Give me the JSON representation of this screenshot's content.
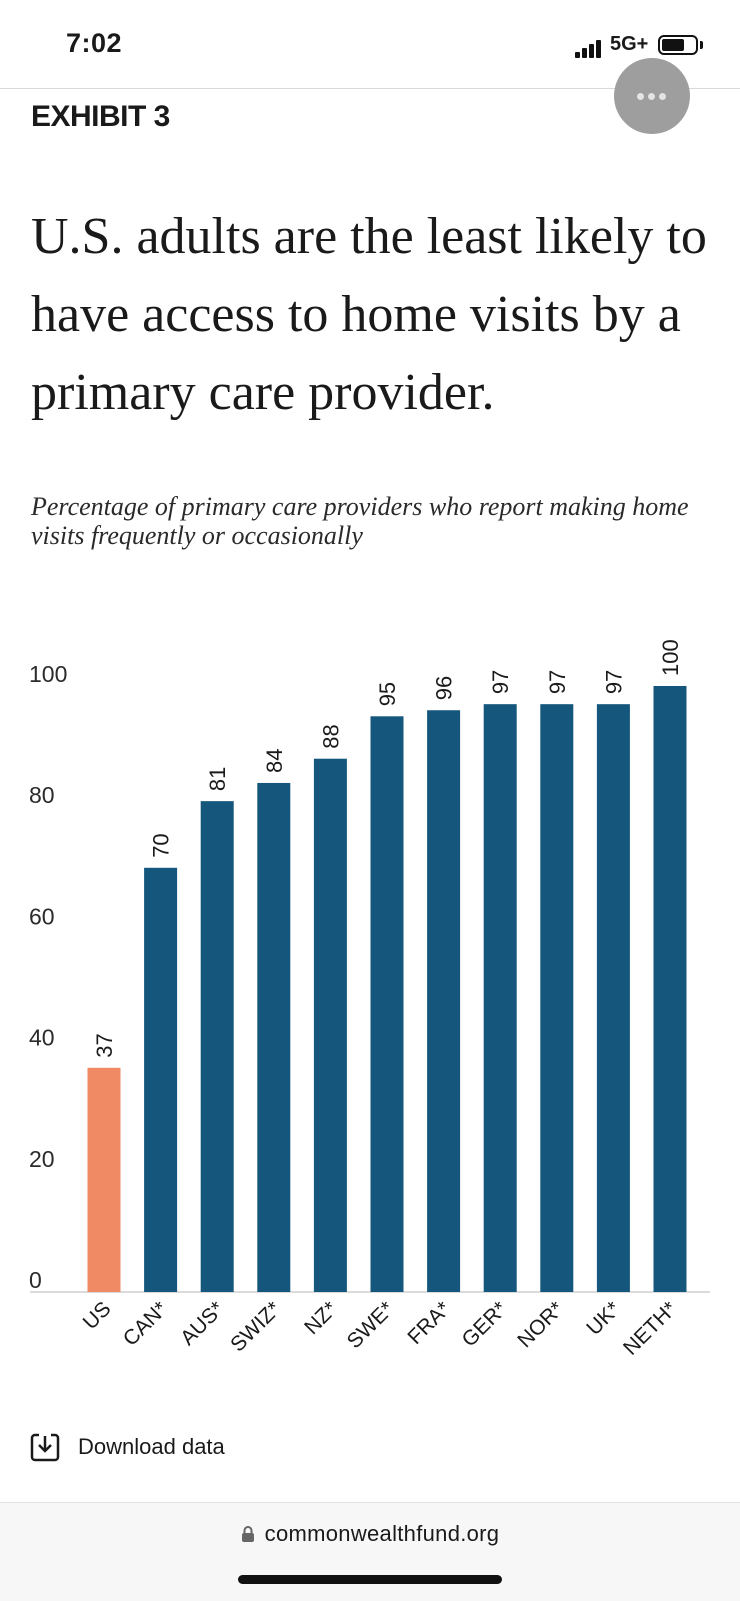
{
  "status_bar": {
    "time": "7:02",
    "network": "5G+"
  },
  "exhibit_label": "EXHIBIT 3",
  "headline": "U.S. adults are the least likely to have access to home visits by a primary care provider.",
  "subtitle": "Percentage of primary care providers who report making home visits frequently or occasionally",
  "download_label": "Download data",
  "url": "commonwealthfund.org",
  "icons": {
    "signal": "signal-bars-icon",
    "battery": "battery-icon",
    "more": "more-dots-icon",
    "download": "download-icon",
    "lock": "lock-icon"
  },
  "chart_data": {
    "type": "bar",
    "categories": [
      "US",
      "CAN*",
      "AUS*",
      "SWIZ*",
      "NZ*",
      "SWE*",
      "FRA*",
      "GER*",
      "NOR*",
      "UK*",
      "NETH*"
    ],
    "values": [
      37,
      70,
      81,
      84,
      88,
      95,
      96,
      97,
      97,
      97,
      100
    ],
    "highlight_category": "US",
    "colors": {
      "highlight": "#f08a65",
      "default": "#15567c"
    },
    "ylim": [
      0,
      100
    ],
    "yticks": [
      0,
      20,
      40,
      60,
      80,
      100
    ],
    "grid": false,
    "xlabel": "",
    "ylabel": ""
  }
}
